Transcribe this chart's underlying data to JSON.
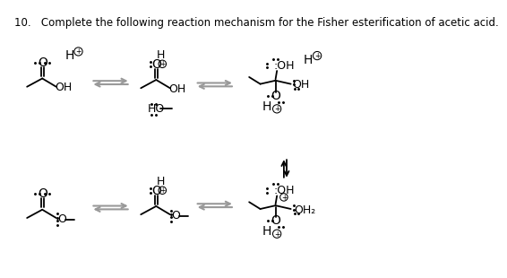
{
  "title": "10.   Complete the following reaction mechanism for the Fisher esterification of acetic acid.",
  "bg": "#ffffff",
  "black": "#000000",
  "gray": "#999999"
}
